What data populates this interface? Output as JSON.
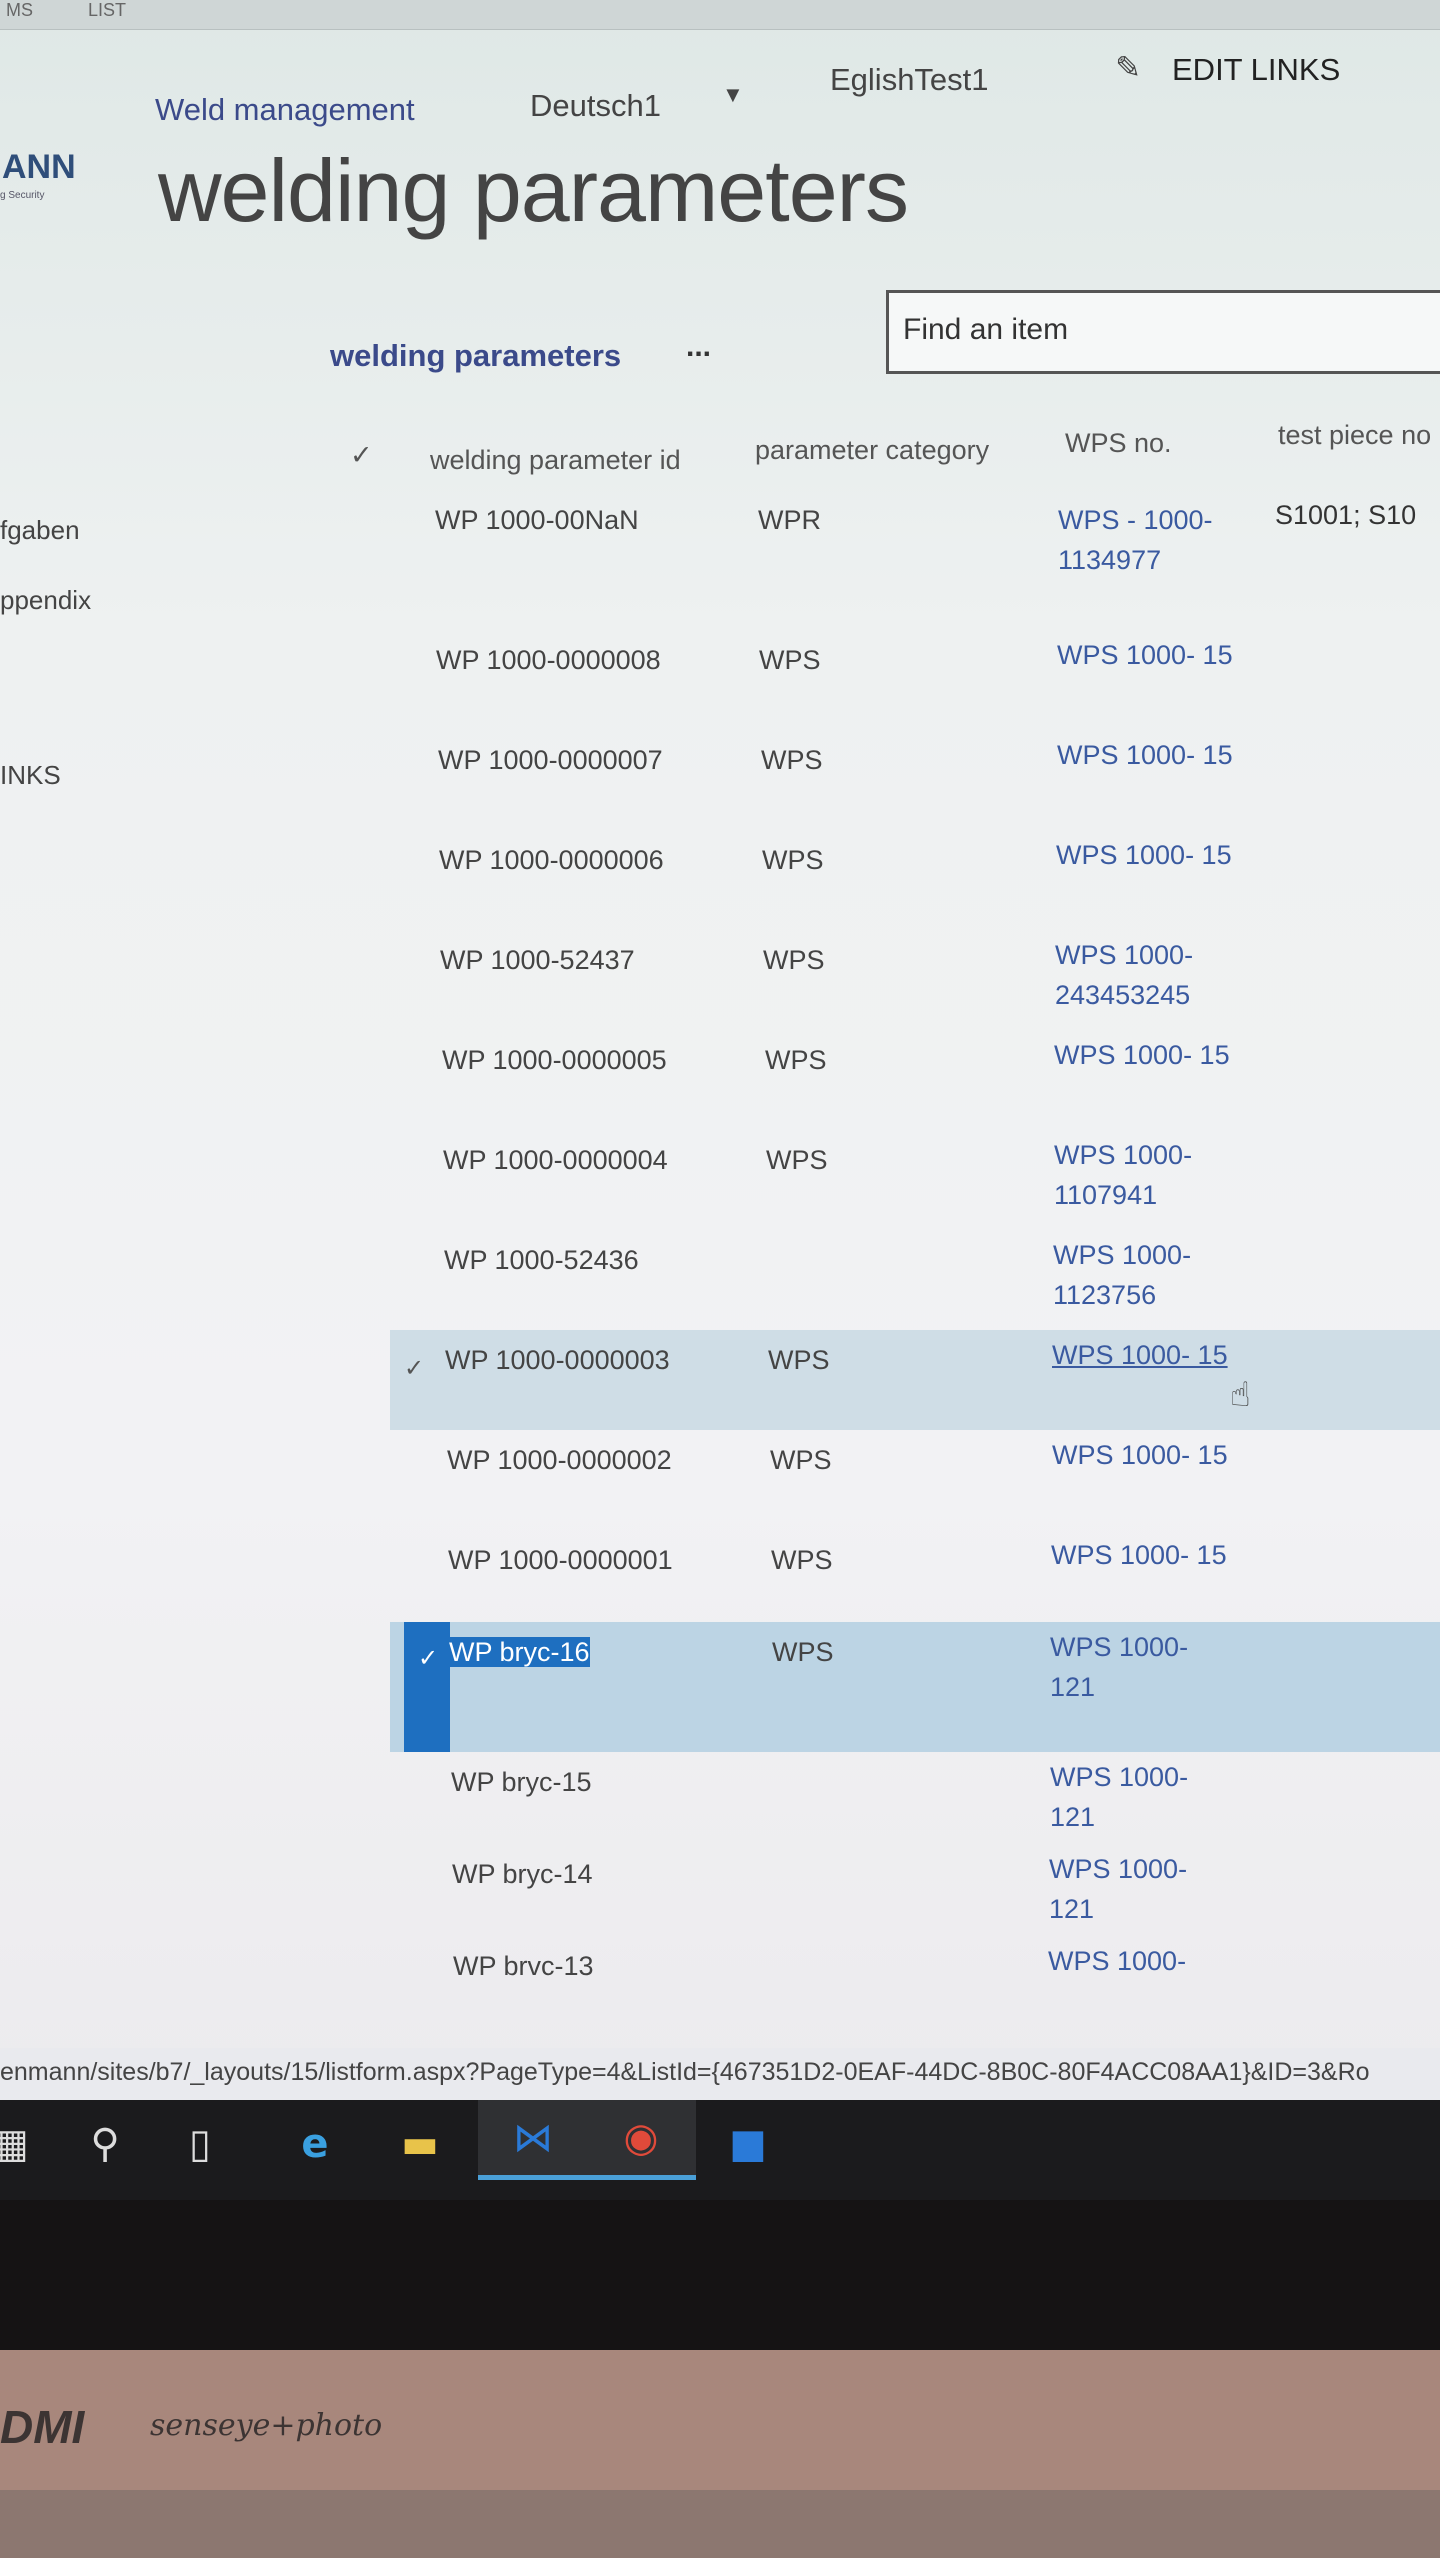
{
  "top_strip": [
    "MS",
    "LIST"
  ],
  "nav": {
    "site": "Weld management",
    "items": [
      "Deutsch1",
      "EglishTest1"
    ],
    "edit_links": "EDIT LINKS"
  },
  "logo": {
    "text": "ANN",
    "sub": "g Security"
  },
  "page_title": "welding parameters",
  "view": {
    "name": "welding parameters",
    "more": "..."
  },
  "search": {
    "placeholder": "Find an item"
  },
  "sidebar": [
    "fgaben",
    "ppendix",
    "INKS"
  ],
  "columns": [
    "welding parameter id",
    "parameter category",
    "WPS no.",
    "test piece no"
  ],
  "rows": [
    {
      "id": "WP 1000-00NaN",
      "cat": "WPR",
      "wps": "WPS - 1000- 1134977",
      "test": "S1001; S10"
    },
    {
      "id": "WP 1000-0000008",
      "cat": "WPS",
      "wps": "WPS 1000- 15"
    },
    {
      "id": "WP 1000-0000007",
      "cat": "WPS",
      "wps": "WPS 1000- 15"
    },
    {
      "id": "WP 1000-0000006",
      "cat": "WPS",
      "wps": "WPS 1000- 15"
    },
    {
      "id": "WP 1000-52437",
      "cat": "WPS",
      "wps": "WPS 1000- 243453245"
    },
    {
      "id": "WP 1000-0000005",
      "cat": "WPS",
      "wps": "WPS 1000- 15"
    },
    {
      "id": "WP 1000-0000004",
      "cat": "WPS",
      "wps": "WPS 1000- 1107941"
    },
    {
      "id": "WP 1000-52436",
      "cat": "",
      "wps": "WPS 1000- 1123756"
    },
    {
      "id": "WP 1000-0000003",
      "cat": "WPS",
      "wps": "WPS 1000- 15",
      "state": "hover"
    },
    {
      "id": "WP 1000-0000002",
      "cat": "WPS",
      "wps": "WPS 1000- 15"
    },
    {
      "id": "WP 1000-0000001",
      "cat": "WPS",
      "wps": "WPS 1000- 15"
    },
    {
      "id": "WP bryc-16",
      "cat": "WPS",
      "wps": "WPS 1000- 121",
      "state": "selected"
    },
    {
      "id": "WP bryc-15",
      "cat": "",
      "wps": "WPS 1000- 121"
    },
    {
      "id": "WP bryc-14",
      "cat": "",
      "wps": "WPS 1000- 121"
    },
    {
      "id": "WP brvc-13",
      "cat": "",
      "wps": "WPS 1000-"
    }
  ],
  "status_url": "enmann/sites/b7/_layouts/15/listform.aspx?PageType=4&ListId={467351D2-0EAF-44DC-8B0C-80F4ACC08AA1}&ID=3&Ro",
  "taskbar": [
    "start-icon",
    "search-icon",
    "task-view-icon",
    "internet-explorer-icon",
    "file-explorer-icon",
    "visual-studio-icon",
    "chrome-icon",
    "app-icon"
  ],
  "bezel": {
    "brand": "DMI",
    "brand2": "senseye+photo"
  },
  "colors": {
    "link": "#3b4a8a",
    "selection": "#1e6fc0",
    "row_selected": "#bcd4e4"
  }
}
